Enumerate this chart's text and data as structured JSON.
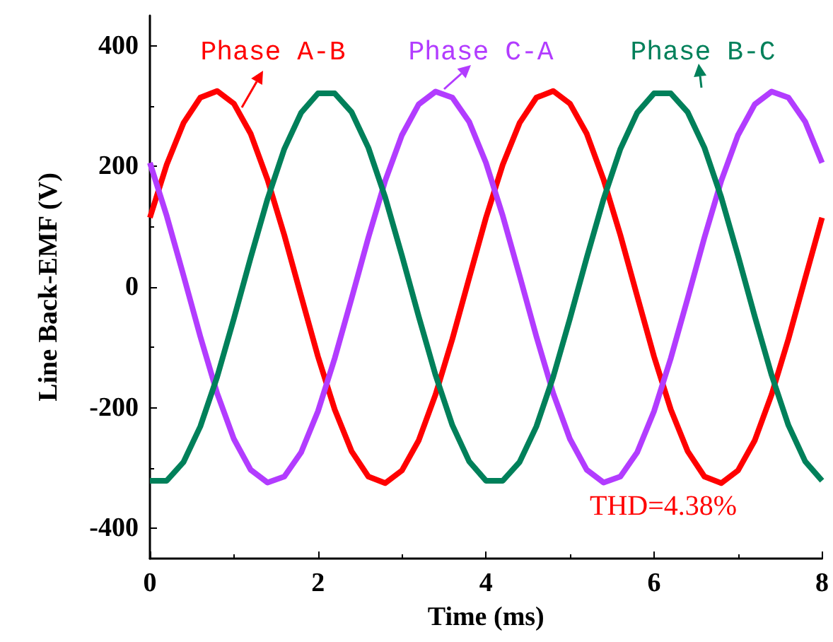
{
  "chart_data": {
    "type": "line",
    "xlabel": "Time (ms)",
    "ylabel": "Line Back-EMF (V)",
    "x": [
      0,
      0.2,
      0.4,
      0.6,
      0.8,
      1,
      1.2,
      1.4,
      1.6,
      1.8,
      2,
      2.2,
      2.4,
      2.6,
      2.8,
      3,
      3.2,
      3.4,
      3.6,
      3.8,
      4,
      4.2,
      4.4,
      4.6,
      4.8,
      5,
      5.2,
      5.4,
      5.6,
      5.8,
      6,
      6.2,
      6.4,
      6.6,
      6.8,
      7,
      7.2,
      7.4,
      7.6,
      7.8,
      8
    ],
    "series": [
      {
        "name": "Phase A-B",
        "color": "#ff0000",
        "values": [
          115,
          203,
          272,
          314,
          325,
          304,
          254,
          178,
          86,
          -15,
          -115,
          -203,
          -272,
          -314,
          -325,
          -304,
          -254,
          -178,
          -86,
          15,
          115,
          203,
          272,
          314,
          325,
          304,
          254,
          178,
          86,
          -15,
          -115,
          -203,
          -272,
          -314,
          -325,
          -304,
          -254,
          -178,
          -86,
          15,
          115
        ]
      },
      {
        "name": "Phase C-A",
        "color": "#b23cff",
        "values": [
          206,
          118,
          19,
          -82,
          -176,
          -252,
          -303,
          -324,
          -314,
          -274,
          -206,
          -118,
          -19,
          82,
          176,
          252,
          303,
          324,
          314,
          274,
          206,
          118,
          19,
          -82,
          -176,
          -252,
          -303,
          -324,
          -314,
          -274,
          -206,
          -118,
          -19,
          82,
          176,
          252,
          303,
          324,
          314,
          274,
          206
        ]
      },
      {
        "name": "Phase B-C",
        "color": "#00805a",
        "values": [
          -321,
          -321,
          -290,
          -231,
          -149,
          -52,
          49,
          146,
          229,
          289,
          321,
          321,
          290,
          231,
          149,
          52,
          -49,
          -146,
          -229,
          -289,
          -321,
          -321,
          -290,
          -231,
          -149,
          -52,
          49,
          146,
          229,
          289,
          321,
          321,
          290,
          231,
          149,
          52,
          -49,
          -146,
          -229,
          -289,
          -321
        ]
      }
    ],
    "annotations": [
      "THD=4.38%"
    ],
    "xlim": [
      0,
      8
    ],
    "xticks": [
      0,
      2,
      4,
      6,
      8
    ],
    "ylim": [
      -450,
      450
    ],
    "yticks": [
      -400,
      -200,
      0,
      200,
      400
    ],
    "grid": false,
    "legend": false,
    "marker": "none",
    "line_style": "solid"
  }
}
